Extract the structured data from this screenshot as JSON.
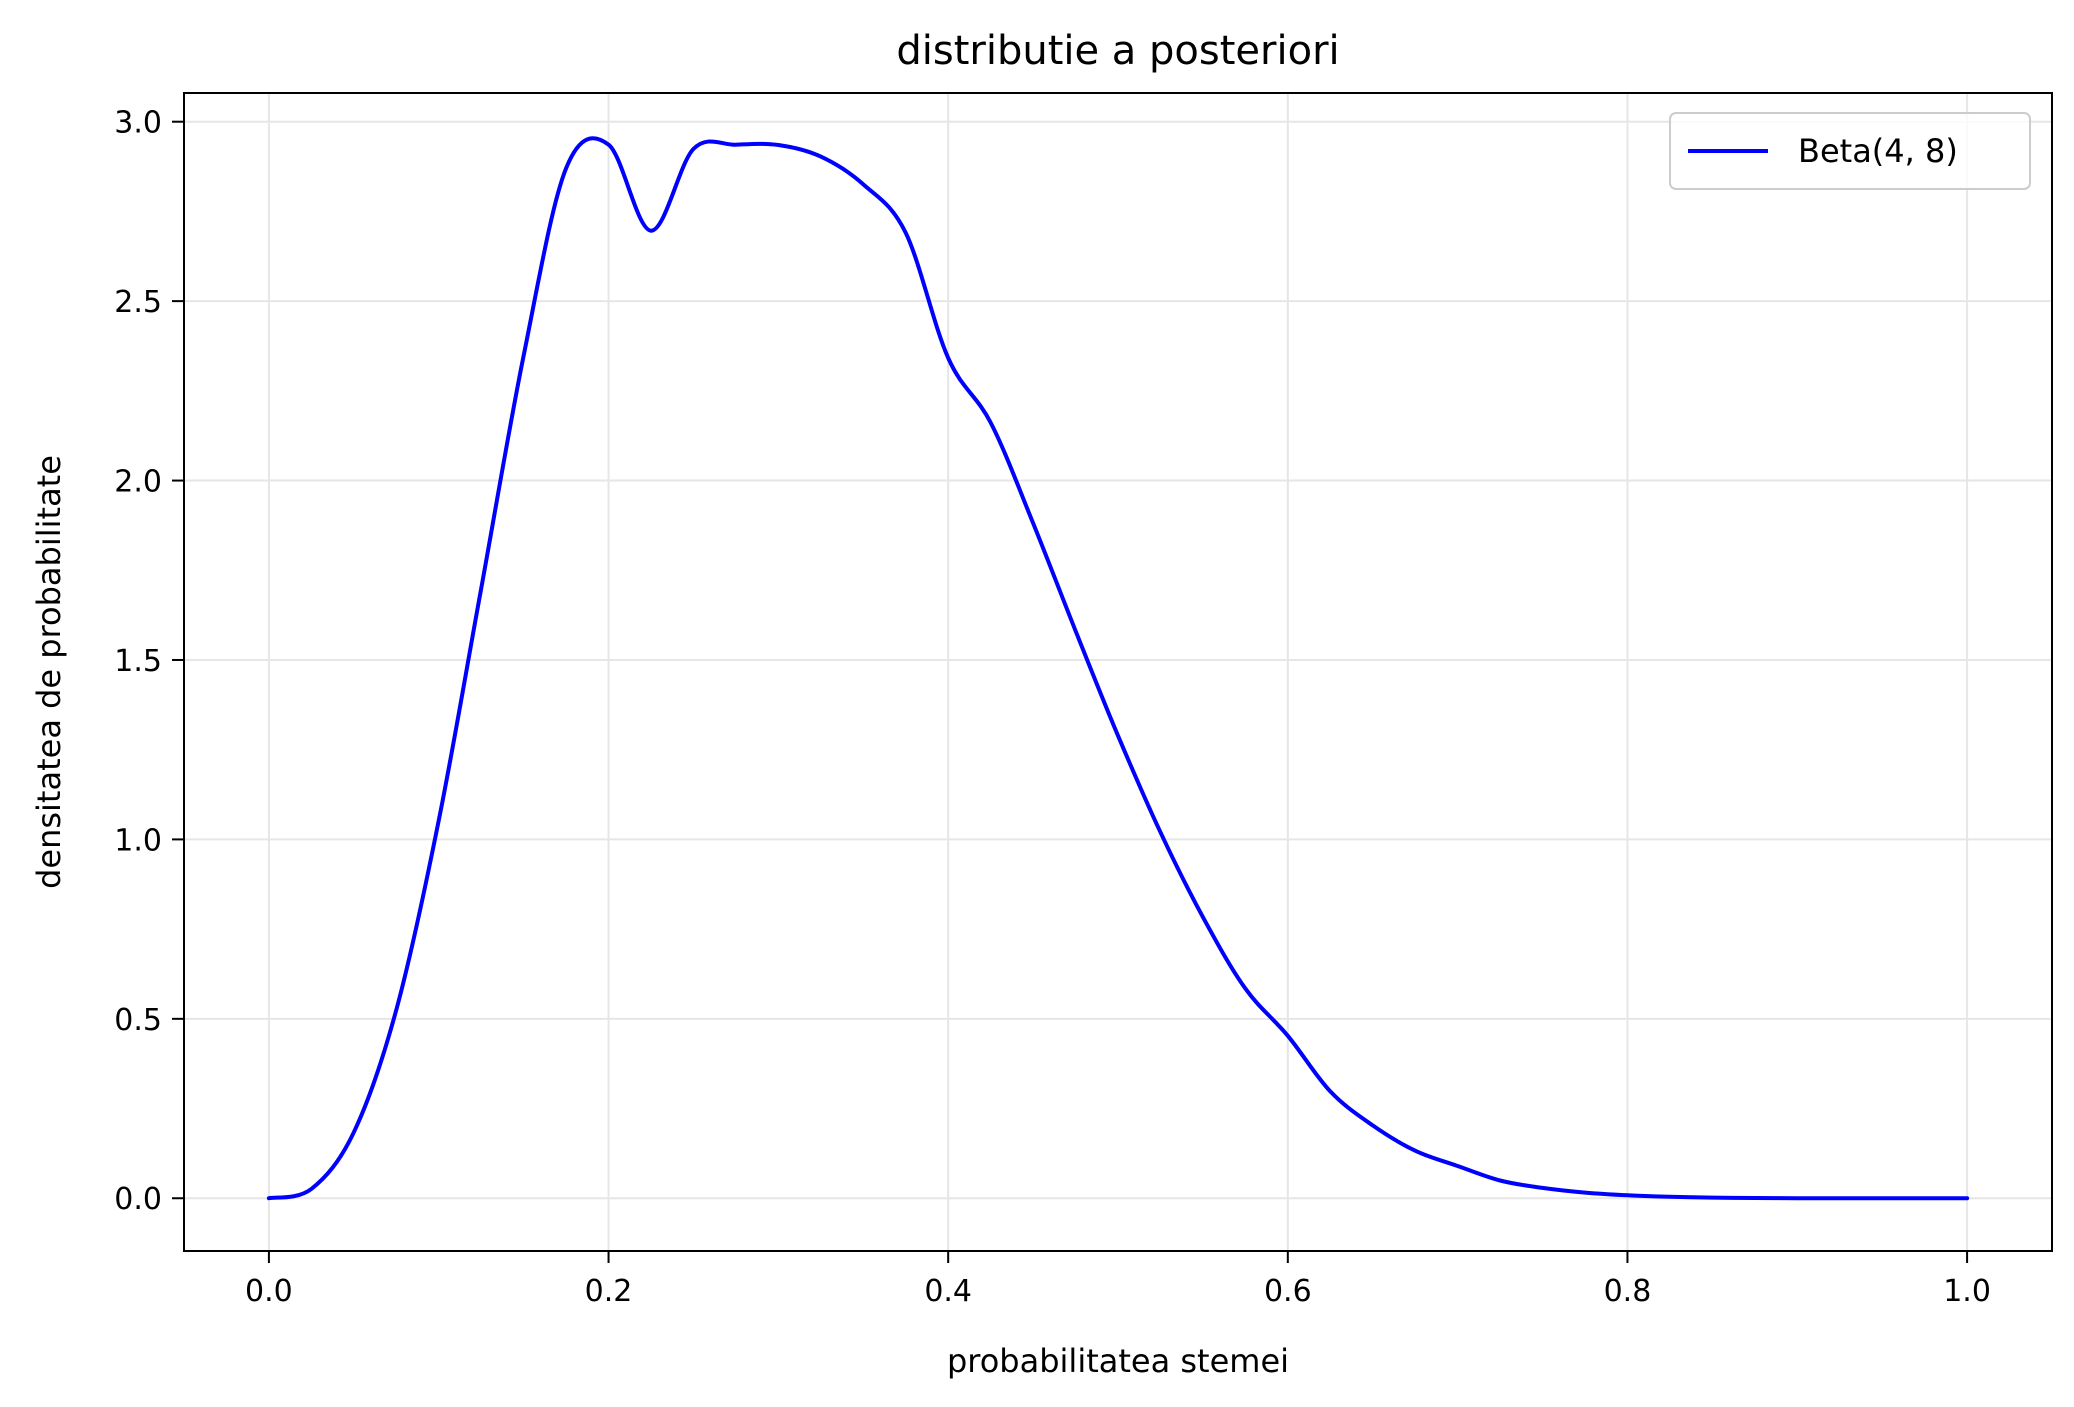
{
  "chart_data": {
    "type": "line",
    "title": "distributie a posteriori",
    "xlabel": "probabilitatea stemei",
    "ylabel": "densitatea de probabilitate",
    "xlim": [
      -0.05,
      1.05
    ],
    "ylim": [
      -0.147,
      3.08
    ],
    "grid": true,
    "legend_position": "top-right",
    "x_ticks": [
      {
        "value": 0.0,
        "label": "0.0"
      },
      {
        "value": 0.2,
        "label": "0.2"
      },
      {
        "value": 0.4,
        "label": "0.4"
      },
      {
        "value": 0.6,
        "label": "0.6"
      },
      {
        "value": 0.8,
        "label": "0.8"
      },
      {
        "value": 1.0,
        "label": "1.0"
      }
    ],
    "y_ticks": [
      {
        "value": 0.0,
        "label": "0.0"
      },
      {
        "value": 0.5,
        "label": "0.5"
      },
      {
        "value": 1.0,
        "label": "1.0"
      },
      {
        "value": 1.5,
        "label": "1.5"
      },
      {
        "value": 2.0,
        "label": "2.0"
      },
      {
        "value": 2.5,
        "label": "2.5"
      },
      {
        "value": 3.0,
        "label": "3.0"
      }
    ],
    "series": [
      {
        "name": "Beta(4, 8)",
        "color": "#0000ff",
        "x": [
          0.0,
          0.025,
          0.05,
          0.075,
          0.1,
          0.125,
          0.15,
          0.175,
          0.2,
          0.225,
          0.25,
          0.275,
          0.3,
          0.325,
          0.35,
          0.375,
          0.4,
          0.425,
          0.45,
          0.475,
          0.5,
          0.525,
          0.55,
          0.575,
          0.6,
          0.625,
          0.65,
          0.675,
          0.7,
          0.725,
          0.75,
          0.775,
          0.8,
          0.825,
          0.85,
          0.875,
          0.9,
          0.925,
          0.95,
          0.975,
          1.0
        ],
        "y": [
          0.0,
          0.0261,
          0.1838,
          0.5249,
          1.0523,
          1.6992,
          2.3476,
          2.8701,
          2.9361,
          2.6964,
          2.9241,
          2.9359,
          2.9351,
          2.9027,
          2.8252,
          2.6903,
          2.3414,
          2.1617,
          1.8815,
          1.5815,
          1.2891,
          1.0199,
          0.7835,
          0.5841,
          0.4528,
          0.2978,
          0.2031,
          0.1324,
          0.09,
          0.0494,
          0.0288,
          0.0158,
          0.0083,
          0.004,
          0.0018,
          0.0007,
          0.0002,
          0.0001,
          0.0,
          0.0,
          0.0
        ]
      }
    ]
  }
}
